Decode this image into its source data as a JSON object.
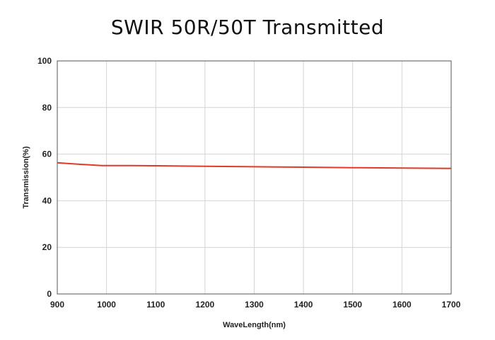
{
  "chart_data": {
    "type": "line",
    "title": "SWIR 50R/50T Transmitted",
    "xlabel": "WaveLength(nm)",
    "ylabel": "Transmission(%)",
    "xlim": [
      900,
      1700
    ],
    "ylim": [
      0,
      100
    ],
    "xticks": [
      900,
      1000,
      1100,
      1200,
      1300,
      1400,
      1500,
      1600,
      1700
    ],
    "yticks": [
      0,
      20,
      40,
      60,
      80,
      100
    ],
    "grid": true,
    "series": [
      {
        "color": "#e03a2a",
        "x": [
          900,
          920,
          950,
          990,
          1050,
          1100,
          1200,
          1300,
          1400,
          1500,
          1600,
          1700
        ],
        "y": [
          56.3,
          56.0,
          55.6,
          55.1,
          55.1,
          55.0,
          54.8,
          54.6,
          54.4,
          54.2,
          54.0,
          53.9
        ]
      }
    ]
  }
}
